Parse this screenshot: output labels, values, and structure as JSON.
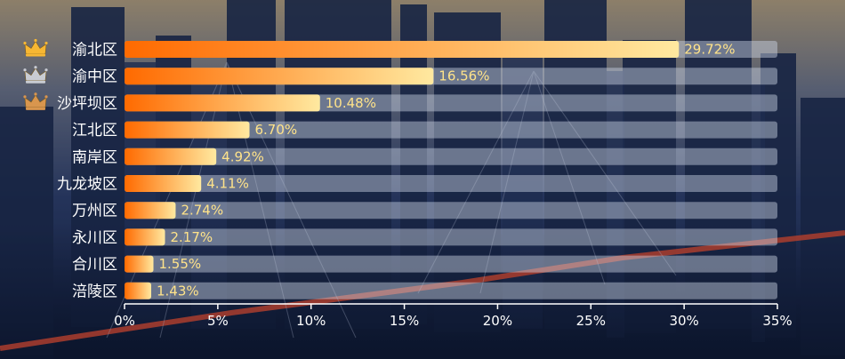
{
  "chart_data": {
    "type": "bar",
    "orientation": "horizontal",
    "categories": [
      "渝北区",
      "渝中区",
      "沙坪坝区",
      "江北区",
      "南岸区",
      "九龙坡区",
      "万州区",
      "永川区",
      "合川区",
      "涪陵区"
    ],
    "values": [
      29.72,
      16.56,
      10.48,
      6.7,
      4.92,
      4.11,
      2.74,
      2.17,
      1.55,
      1.43
    ],
    "value_labels": [
      "29.72%",
      "16.56%",
      "10.48%",
      "6.70%",
      "4.92%",
      "4.11%",
      "2.74%",
      "2.17%",
      "1.55%",
      "1.43%"
    ],
    "x_ticks": [
      "0%",
      "5%",
      "10%",
      "15%",
      "20%",
      "25%",
      "30%",
      "35%"
    ],
    "xlim": [
      0,
      35
    ],
    "title": "",
    "xlabel": "",
    "ylabel": "",
    "grid": false,
    "legend": "none",
    "rank_icons": [
      "crown-gold",
      "crown-silver",
      "crown-bronze"
    ]
  },
  "colors": {
    "bar_start": "#ff6a00",
    "bar_end": "#ffe9a0",
    "track": "#cfd6e6",
    "category_text": "#ffffff",
    "value_text": "#ffe38a",
    "axis": "#ffffff",
    "crown_gold": "#f7b733",
    "crown_silver": "#c9ccd3",
    "crown_bronze": "#d9964e"
  }
}
